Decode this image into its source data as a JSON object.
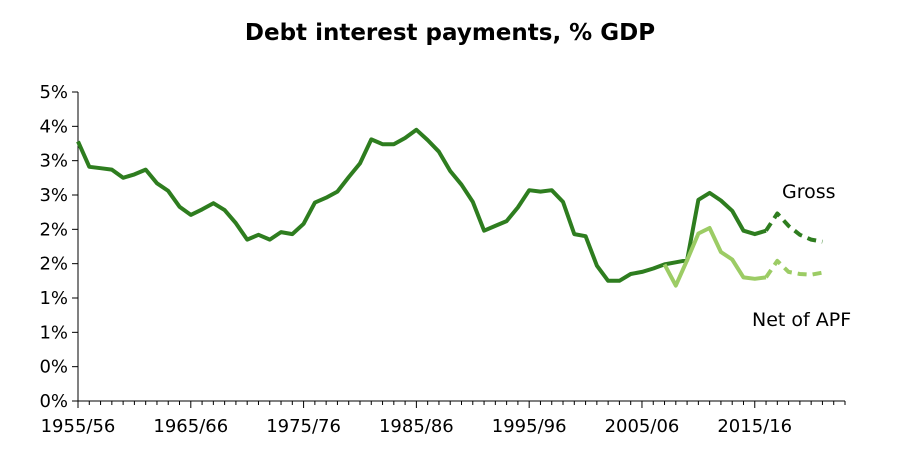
{
  "chart_data": {
    "type": "line",
    "title": "Debt interest payments, % GDP",
    "xlabel": "",
    "ylabel": "",
    "ylim": [
      0,
      4.5
    ],
    "y_ticks": [
      {
        "value": 0.0,
        "label": "0%"
      },
      {
        "value": 0.5,
        "label": "0%"
      },
      {
        "value": 1.0,
        "label": "1%"
      },
      {
        "value": 1.5,
        "label": "1%"
      },
      {
        "value": 2.0,
        "label": "2%"
      },
      {
        "value": 2.5,
        "label": "2%"
      },
      {
        "value": 3.0,
        "label": "3%"
      },
      {
        "value": 3.5,
        "label": "3%"
      },
      {
        "value": 4.0,
        "label": "4%"
      },
      {
        "value": 4.5,
        "label": "5%"
      }
    ],
    "x_range": [
      1955,
      2023
    ],
    "x_ticks": [
      {
        "value": 1955,
        "label": "1955/56"
      },
      {
        "value": 1965,
        "label": "1965/66"
      },
      {
        "value": 1975,
        "label": "1975/76"
      },
      {
        "value": 1985,
        "label": "1985/86"
      },
      {
        "value": 1995,
        "label": "1995/96"
      },
      {
        "value": 2005,
        "label": "2005/06"
      },
      {
        "value": 2015,
        "label": "2015/16"
      }
    ],
    "grid": false,
    "legend": "none",
    "series": [
      {
        "name": "Gross",
        "color": "#2e7d1f",
        "style": "solid",
        "points": [
          [
            1955,
            3.78
          ],
          [
            1956,
            3.41
          ],
          [
            1957,
            3.39
          ],
          [
            1958,
            3.37
          ],
          [
            1959,
            3.25
          ],
          [
            1960,
            3.3
          ],
          [
            1961,
            3.37
          ],
          [
            1962,
            3.17
          ],
          [
            1963,
            3.06
          ],
          [
            1964,
            2.83
          ],
          [
            1965,
            2.71
          ],
          [
            1966,
            2.79
          ],
          [
            1967,
            2.88
          ],
          [
            1968,
            2.78
          ],
          [
            1969,
            2.59
          ],
          [
            1970,
            2.35
          ],
          [
            1971,
            2.42
          ],
          [
            1972,
            2.35
          ],
          [
            1973,
            2.46
          ],
          [
            1974,
            2.43
          ],
          [
            1975,
            2.58
          ],
          [
            1976,
            2.89
          ],
          [
            1977,
            2.96
          ],
          [
            1978,
            3.05
          ],
          [
            1979,
            3.26
          ],
          [
            1980,
            3.46
          ],
          [
            1981,
            3.81
          ],
          [
            1982,
            3.74
          ],
          [
            1983,
            3.74
          ],
          [
            1984,
            3.83
          ],
          [
            1985,
            3.95
          ],
          [
            1986,
            3.8
          ],
          [
            1987,
            3.63
          ],
          [
            1988,
            3.35
          ],
          [
            1989,
            3.15
          ],
          [
            1990,
            2.9
          ],
          [
            1991,
            2.48
          ],
          [
            1992,
            2.55
          ],
          [
            1993,
            2.62
          ],
          [
            1994,
            2.82
          ],
          [
            1995,
            3.07
          ],
          [
            1996,
            3.05
          ],
          [
            1997,
            3.07
          ],
          [
            1998,
            2.9
          ],
          [
            1999,
            2.43
          ],
          [
            2000,
            2.4
          ],
          [
            2001,
            1.97
          ],
          [
            2002,
            1.75
          ],
          [
            2003,
            1.75
          ],
          [
            2004,
            1.85
          ],
          [
            2005,
            1.88
          ],
          [
            2006,
            1.93
          ],
          [
            2007,
            1.99
          ],
          [
            2008,
            2.02
          ],
          [
            2009,
            2.05
          ],
          [
            2010,
            2.93
          ],
          [
            2011,
            3.03
          ],
          [
            2012,
            2.92
          ],
          [
            2013,
            2.77
          ],
          [
            2014,
            2.48
          ],
          [
            2015,
            2.43
          ],
          [
            2016,
            2.48
          ]
        ]
      },
      {
        "name": "Gross",
        "color": "#2e7d1f",
        "style": "dashed",
        "points": [
          [
            2016,
            2.48
          ],
          [
            2017,
            2.73
          ],
          [
            2018,
            2.55
          ],
          [
            2019,
            2.42
          ],
          [
            2020,
            2.35
          ],
          [
            2021,
            2.32
          ]
        ]
      },
      {
        "name": "Net of APF",
        "color": "#9ccc65",
        "style": "solid",
        "points": [
          [
            2007,
            1.99
          ],
          [
            2008,
            1.68
          ],
          [
            2009,
            2.05
          ],
          [
            2010,
            2.44
          ],
          [
            2011,
            2.52
          ],
          [
            2012,
            2.17
          ],
          [
            2013,
            2.06
          ],
          [
            2014,
            1.8
          ],
          [
            2015,
            1.78
          ],
          [
            2016,
            1.8
          ]
        ]
      },
      {
        "name": "Net of APF",
        "color": "#9ccc65",
        "style": "dashed",
        "points": [
          [
            2016,
            1.8
          ],
          [
            2017,
            2.04
          ],
          [
            2018,
            1.88
          ],
          [
            2019,
            1.85
          ],
          [
            2020,
            1.84
          ],
          [
            2021,
            1.87
          ]
        ]
      }
    ],
    "annotations": [
      {
        "text": "Gross",
        "series": "Gross"
      },
      {
        "text": "Net of APF",
        "series": "Net of APF"
      }
    ]
  }
}
